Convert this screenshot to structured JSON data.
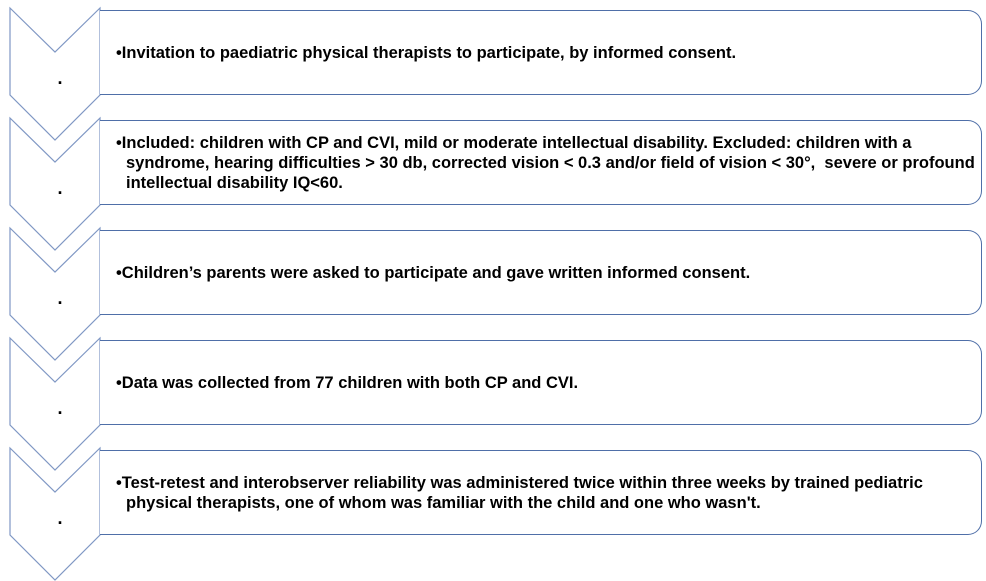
{
  "steps": [
    {
      "marker": ".",
      "text": "•Invitation to paediatric physical therapists to participate, by informed consent."
    },
    {
      "marker": ".",
      "text": "•Included: children with CP and CVI, mild or moderate intellectual disability. Excluded: children with a syndrome, hearing difficulties > 30 db, corrected vision < 0.3 and/or field of vision < 30°,  severe or profound intellectual disability IQ<60."
    },
    {
      "marker": ".",
      "text": "•Children’s parents were asked to participate and gave written informed consent."
    },
    {
      "marker": ".",
      "text": "•Data was collected from 77 children with both CP and CVI."
    },
    {
      "marker": ".",
      "text": "•Test-retest and interobserver reliability was administered twice within three weeks by trained pediatric physical therapists, one of whom was familiar with the child and one who wasn't."
    }
  ]
}
